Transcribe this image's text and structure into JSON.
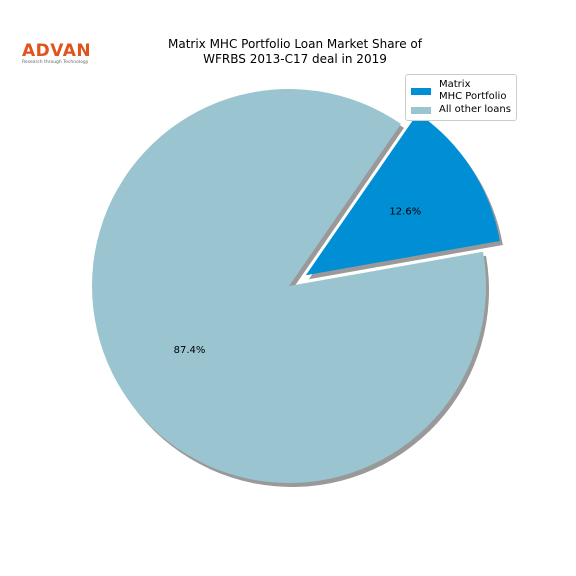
{
  "logo": {
    "name": "ADVAN",
    "tagline": "Research through Technology"
  },
  "chart_data": {
    "type": "pie",
    "title": "Matrix MHC Portfolio Loan Market Share of\nWFRBS 2013-C17 deal in 2019",
    "categories": [
      "Matrix\nMHC Portfolio",
      "All other loans"
    ],
    "values": [
      12.6,
      87.4
    ],
    "value_labels": [
      "12.6%",
      "87.4%"
    ],
    "colors": [
      "#008fd5",
      "#9ac5d0"
    ],
    "legend": "upper right"
  }
}
